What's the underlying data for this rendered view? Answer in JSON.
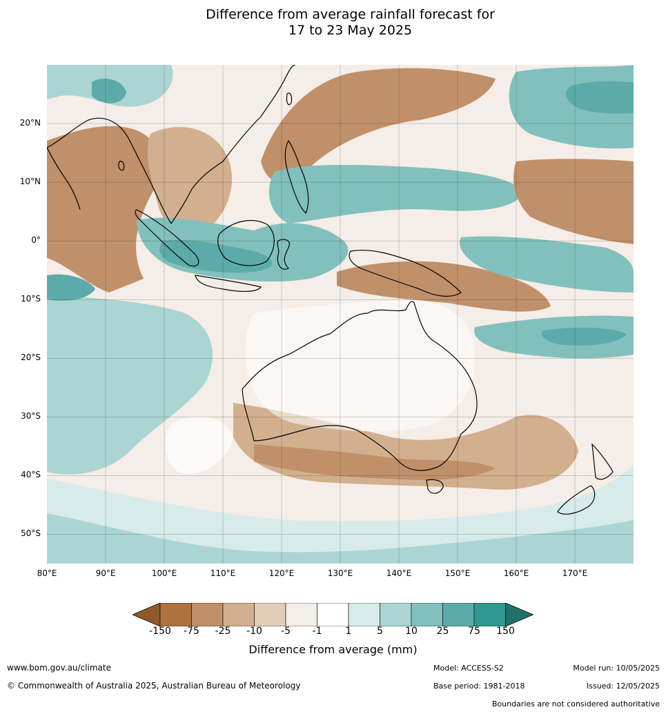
{
  "title": {
    "line1": "Difference from average rainfall forecast for",
    "line2": "17 to 23 May 2025"
  },
  "map": {
    "lat_labels": [
      "20°N",
      "10°N",
      "0°",
      "10°S",
      "20°S",
      "30°S",
      "40°S",
      "50°S"
    ],
    "lon_labels": [
      "80°E",
      "90°E",
      "100°E",
      "110°E",
      "120°E",
      "130°E",
      "140°E",
      "150°E",
      "160°E",
      "170°E"
    ],
    "lon_range": [
      80,
      180
    ],
    "lat_range": [
      -55,
      30
    ]
  },
  "legend": {
    "title": "Difference from average (mm)",
    "ticks": [
      "-150",
      "-75",
      "-25",
      "-10",
      "-5",
      "-1",
      "1",
      "5",
      "10",
      "25",
      "75",
      "150"
    ],
    "colors": [
      "#8d5a2b",
      "#ad733f",
      "#c0906a",
      "#d2b08f",
      "#e3cdb9",
      "#f5ede7",
      "#ffffff",
      "#d6ebea",
      "#abd5d3",
      "#82c0bd",
      "#5cabaa",
      "#2f9891",
      "#1f726c"
    ]
  },
  "footer": {
    "website": "www.bom.gov.au/climate",
    "copyright": "© Commonwealth of Australia 2025, Australian Bureau of Meteorology",
    "model": "Model: ACCESS-S2",
    "base_period": "Base period: 1981-2018",
    "model_run": "Model run: 10/05/2025",
    "issued": "Issued: 12/05/2025",
    "boundaries": "Boundaries are not considered authoritative"
  }
}
